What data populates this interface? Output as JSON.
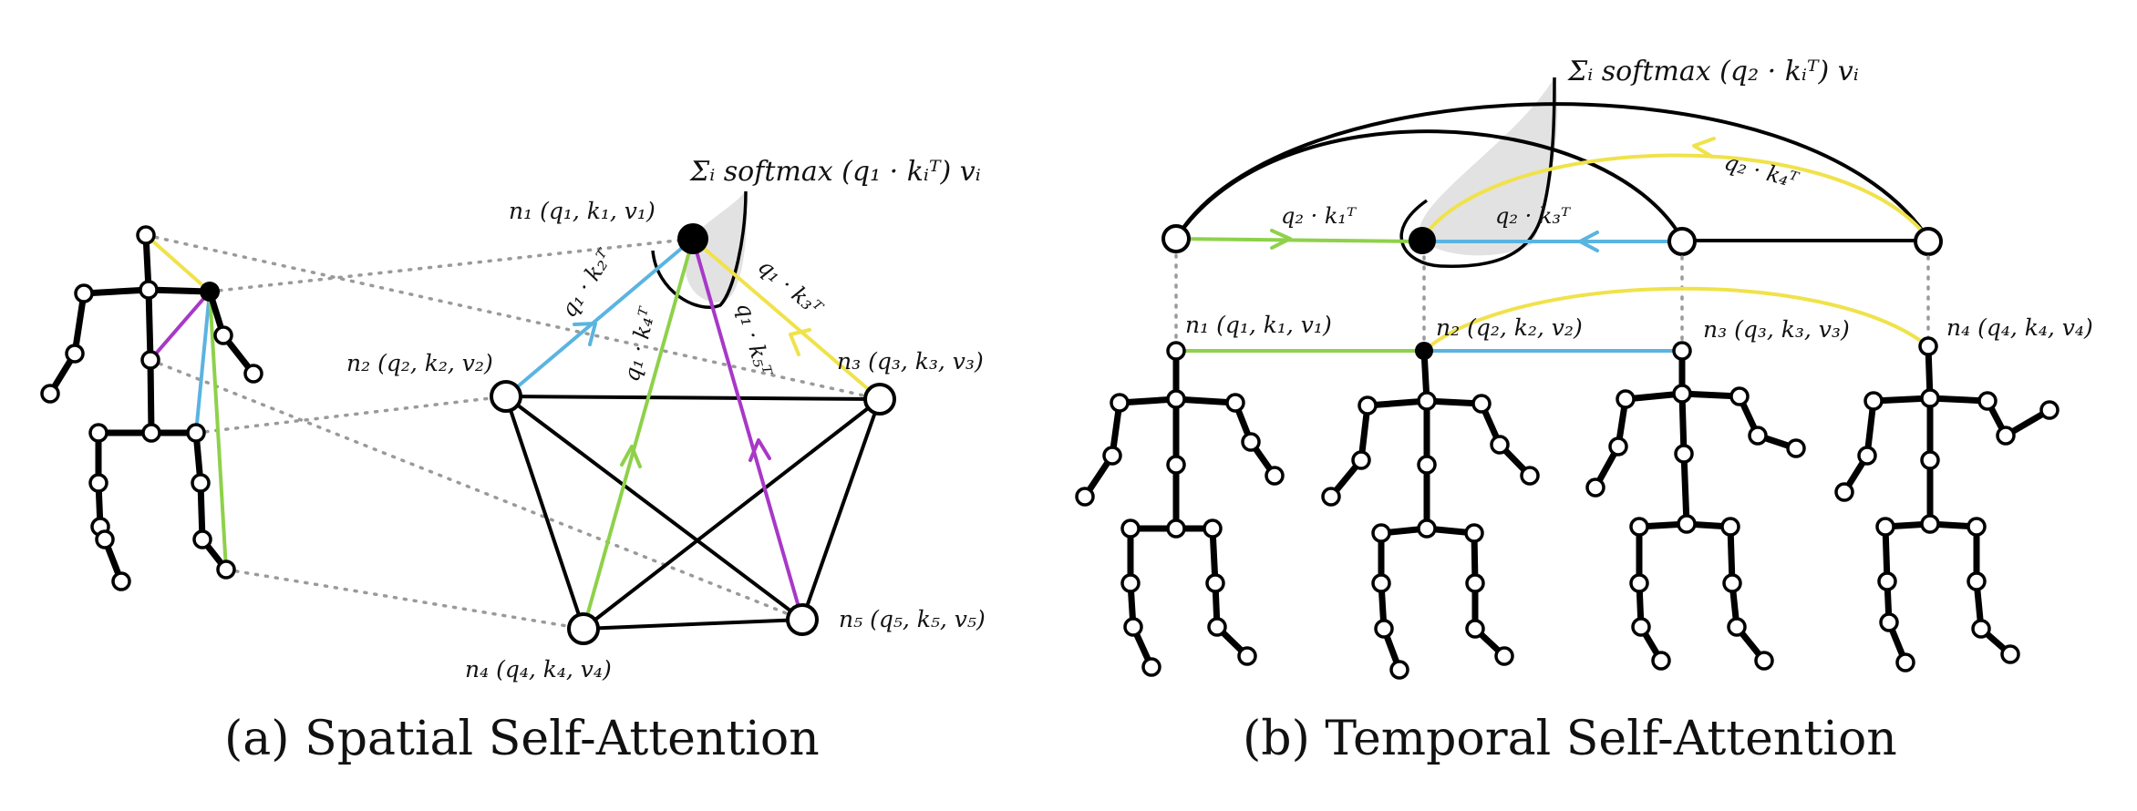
{
  "caption_a": "(a) Spatial Self-Attention",
  "caption_b": "(b) Temporal Self-Attention",
  "spatial": {
    "formula": "Σᵢ softmax (q₁ · kᵢᵀ) vᵢ",
    "nodes": {
      "n1": "n₁ (q₁, k₁, v₁)",
      "n2": "n₂ (q₂, k₂, v₂)",
      "n3": "n₃ (q₃, k₃, v₃)",
      "n4": "n₄ (q₄, k₄, v₄)",
      "n5": "n₅ (q₅, k₅, v₅)"
    },
    "edge_labels": {
      "e12": "q₁ · k₂ᵀ",
      "e13": "q₁ · k₃ᵀ",
      "e14": "q₁ · k₄ᵀ",
      "e15": "q₁ · k₅ᵀ"
    },
    "colors": {
      "blue": "#5ab4e0",
      "green": "#8ed14a",
      "yellow": "#f0e24a",
      "purple": "#a838c8"
    }
  },
  "temporal": {
    "formula": "Σᵢ softmax (q₂ · kᵢᵀ) vᵢ",
    "nodes": {
      "n1": "n₁ (q₁, k₁, v₁)",
      "n2": "n₂ (q₂, k₂, v₂)",
      "n3": "n₃ (q₃, k₃, v₃)",
      "n4": "n₄ (q₄, k₄, v₄)"
    },
    "edge_labels": {
      "e21": "q₂ · k₁ᵀ",
      "e23": "q₂ · k₃ᵀ",
      "e24": "q₂ · k₄ᵀ"
    }
  }
}
